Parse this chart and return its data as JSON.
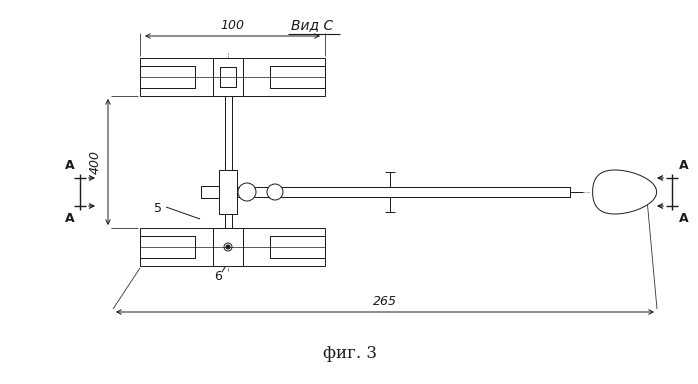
{
  "background_color": "#ffffff",
  "line_color": "#1a1a1a",
  "title": "фиг. 3",
  "view_label": "Вид C",
  "dim_100": "100",
  "dim_400": "400",
  "dim_265": "265",
  "label_5": "5",
  "label_6": "6",
  "label_A": "A",
  "figsize": [
    6.98,
    3.84
  ],
  "dpi": 100
}
